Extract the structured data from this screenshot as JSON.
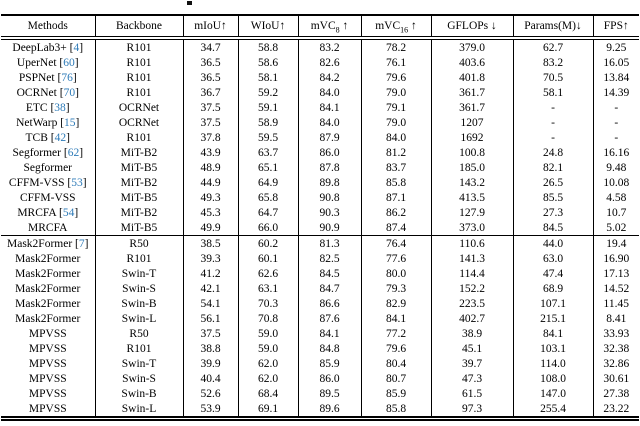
{
  "colors": {
    "citation": "#2e7bb8",
    "text": "#000000",
    "rules": "#000000"
  },
  "table": {
    "columns": [
      {
        "label": "Methods"
      },
      {
        "label": "Backbone"
      },
      {
        "label": "mIoU",
        "suffix": "↑"
      },
      {
        "label": "WIoU",
        "suffix": "↑"
      },
      {
        "label": "mVC",
        "sub": "8",
        "suffix": " ↑"
      },
      {
        "label": "mVC",
        "sub": "16",
        "suffix": " ↑"
      },
      {
        "label": "GFLOPs",
        "suffix": " ↓"
      },
      {
        "label": "Params(M)",
        "suffix": "↓"
      },
      {
        "label": "FPS",
        "suffix": "↑"
      }
    ],
    "sections": [
      {
        "rows": [
          {
            "method": "DeepLab3+",
            "cite": "4",
            "backbone": "R101",
            "values": [
              "34.7",
              "58.8",
              "83.2",
              "78.2",
              "379.0",
              "62.7",
              "9.25"
            ]
          },
          {
            "method": "UperNet",
            "cite": "60",
            "backbone": "R101",
            "values": [
              "36.5",
              "58.6",
              "82.6",
              "76.1",
              "403.6",
              "83.2",
              "16.05"
            ]
          },
          {
            "method": "PSPNet",
            "cite": "76",
            "backbone": "R101",
            "values": [
              "36.5",
              "58.1",
              "84.2",
              "79.6",
              "401.8",
              "70.5",
              "13.84"
            ]
          },
          {
            "method": "OCRNet",
            "cite": "70",
            "backbone": "R101",
            "values": [
              "36.7",
              "59.2",
              "84.0",
              "79.0",
              "361.7",
              "58.1",
              "14.39"
            ]
          },
          {
            "method": "ETC",
            "cite": "38",
            "backbone": "OCRNet",
            "values": [
              "37.5",
              "59.1",
              "84.1",
              "79.1",
              "361.7",
              "-",
              "-"
            ]
          },
          {
            "method": "NetWarp",
            "cite": "15",
            "backbone": "OCRNet",
            "values": [
              "37.5",
              "58.9",
              "84.0",
              "79.0",
              "1207",
              "-",
              "-"
            ]
          },
          {
            "method": "TCB",
            "cite": "42",
            "backbone": "R101",
            "values": [
              "37.8",
              "59.5",
              "87.9",
              "84.0",
              "1692",
              "-",
              "-"
            ]
          },
          {
            "method": "Segformer",
            "cite": "62",
            "backbone": "MiT-B2",
            "values": [
              "43.9",
              "63.7",
              "86.0",
              "81.2",
              "100.8",
              "24.8",
              "16.16"
            ]
          },
          {
            "method": "Segformer",
            "cite": null,
            "backbone": "MiT-B5",
            "values": [
              "48.9",
              "65.1",
              "87.8",
              "83.7",
              "185.0",
              "82.1",
              "9.48"
            ]
          },
          {
            "method": "CFFM-VSS",
            "cite": "53",
            "backbone": "MiT-B2",
            "values": [
              "44.9",
              "64.9",
              "89.8",
              "85.8",
              "143.2",
              "26.5",
              "10.08"
            ]
          },
          {
            "method": "CFFM-VSS",
            "cite": null,
            "backbone": "MiT-B5",
            "values": [
              "49.3",
              "65.8",
              "90.8",
              "87.1",
              "413.5",
              "85.5",
              "4.58"
            ]
          },
          {
            "method": "MRCFA",
            "cite": "54",
            "backbone": "MiT-B2",
            "values": [
              "45.3",
              "64.7",
              "90.3",
              "86.2",
              "127.9",
              "27.3",
              "10.7"
            ]
          },
          {
            "method": "MRCFA",
            "cite": null,
            "backbone": "MiT-B5",
            "values": [
              "49.9",
              "66.0",
              "90.9",
              "87.4",
              "373.0",
              "84.5",
              "5.02"
            ]
          }
        ]
      },
      {
        "rows": [
          {
            "method": "Mask2Former",
            "cite": "7",
            "backbone": "R50",
            "values": [
              "38.5",
              "60.2",
              "81.3",
              "76.4",
              "110.6",
              "44.0",
              "19.4"
            ]
          },
          {
            "method": "Mask2Former",
            "cite": null,
            "backbone": "R101",
            "values": [
              "39.3",
              "60.1",
              "82.5",
              "77.6",
              "141.3",
              "63.0",
              "16.90"
            ]
          },
          {
            "method": "Mask2Former",
            "cite": null,
            "backbone": "Swin-T",
            "values": [
              "41.2",
              "62.6",
              "84.5",
              "80.0",
              "114.4",
              "47.4",
              "17.13"
            ]
          },
          {
            "method": "Mask2Former",
            "cite": null,
            "backbone": "Swin-S",
            "values": [
              "42.1",
              "63.1",
              "84.7",
              "79.3",
              "152.2",
              "68.9",
              "14.52"
            ]
          },
          {
            "method": "Mask2Former",
            "cite": null,
            "backbone": "Swin-B",
            "values": [
              "54.1",
              "70.3",
              "86.6",
              "82.9",
              "223.5",
              "107.1",
              "11.45"
            ]
          },
          {
            "method": "Mask2Former",
            "cite": null,
            "backbone": "Swin-L",
            "values": [
              "56.1",
              "70.8",
              "87.6",
              "84.1",
              "402.7",
              "215.1",
              "8.41"
            ]
          },
          {
            "method": "MPVSS",
            "cite": null,
            "backbone": "R50",
            "values": [
              "37.5",
              "59.0",
              "84.1",
              "77.2",
              "38.9",
              "84.1",
              "33.93"
            ]
          },
          {
            "method": "MPVSS",
            "cite": null,
            "backbone": "R101",
            "values": [
              "38.8",
              "59.0",
              "84.8",
              "79.6",
              "45.1",
              "103.1",
              "32.38"
            ]
          },
          {
            "method": "MPVSS",
            "cite": null,
            "backbone": "Swin-T",
            "values": [
              "39.9",
              "62.0",
              "85.9",
              "80.4",
              "39.7",
              "114.0",
              "32.86"
            ]
          },
          {
            "method": "MPVSS",
            "cite": null,
            "backbone": "Swin-S",
            "values": [
              "40.4",
              "62.0",
              "86.0",
              "80.7",
              "47.3",
              "108.0",
              "30.61"
            ]
          },
          {
            "method": "MPVSS",
            "cite": null,
            "backbone": "Swin-B",
            "values": [
              "52.6",
              "68.4",
              "89.5",
              "85.9",
              "61.5",
              "147.0",
              "27.38"
            ]
          },
          {
            "method": "MPVSS",
            "cite": null,
            "backbone": "Swin-L",
            "values": [
              "53.9",
              "69.1",
              "89.6",
              "85.8",
              "97.3",
              "255.4",
              "23.22"
            ]
          }
        ]
      }
    ]
  }
}
